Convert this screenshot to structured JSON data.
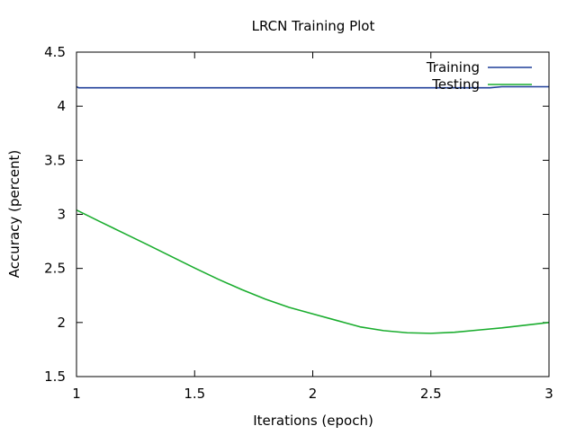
{
  "chart_data": {
    "type": "line",
    "title": "LRCN Training Plot",
    "xlabel": "Iterations (epoch)",
    "ylabel": "Accuracy (percent)",
    "xlim": [
      1,
      3
    ],
    "ylim": [
      1.5,
      4.5
    ],
    "x_ticks": [
      1,
      1.5,
      2,
      2.5,
      3
    ],
    "x_tick_labels": [
      "1",
      "1.5",
      "2",
      "2.5",
      "3"
    ],
    "y_ticks": [
      1.5,
      2,
      2.5,
      3,
      3.5,
      4,
      4.5
    ],
    "y_tick_labels": [
      "1.5",
      "2",
      "2.5",
      "3",
      "3.5",
      "4",
      "4.5"
    ],
    "grid": false,
    "legend_position": "top-right",
    "series": [
      {
        "name": "Training",
        "color": "#1f3f99",
        "x": [
          1.0,
          1.01,
          1.25,
          1.5,
          1.75,
          2.0,
          2.25,
          2.5,
          2.75,
          2.8,
          3.0
        ],
        "y": [
          4.18,
          4.17,
          4.17,
          4.17,
          4.17,
          4.17,
          4.17,
          4.17,
          4.17,
          4.18,
          4.18
        ]
      },
      {
        "name": "Testing",
        "color": "#1aad2e",
        "x": [
          1.0,
          1.1,
          1.2,
          1.3,
          1.4,
          1.5,
          1.6,
          1.7,
          1.8,
          1.9,
          2.0,
          2.1,
          2.2,
          2.3,
          2.4,
          2.5,
          2.6,
          2.7,
          2.8,
          2.9,
          3.0
        ],
        "y": [
          3.04,
          2.932,
          2.826,
          2.72,
          2.612,
          2.504,
          2.4,
          2.304,
          2.216,
          2.14,
          2.08,
          2.02,
          1.96,
          1.925,
          1.905,
          1.9,
          1.91,
          1.93,
          1.95,
          1.975,
          2.0
        ]
      }
    ]
  }
}
